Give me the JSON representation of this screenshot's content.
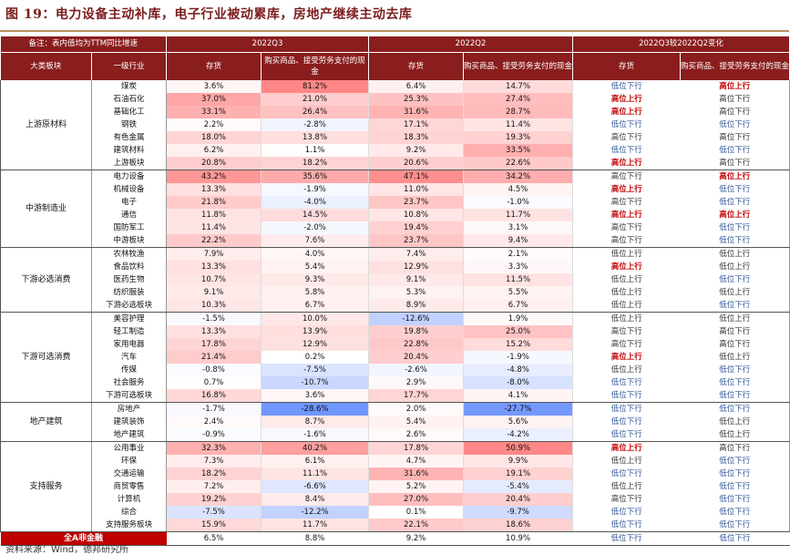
{
  "title": "图 19：电力设备主动补库，电子行业被动累库，房地产继续主动去库",
  "header": {
    "note": "备注：表内值均为TTM同比增速",
    "period1": "2022Q3",
    "period2": "2022Q2",
    "period3": "2022Q3较2022Q2变化",
    "col_group": "大类板块",
    "col_industry": "一级行业",
    "col_inventory": "存货",
    "col_cash": "购买商品、接受劳务支付的现金"
  },
  "groups": [
    {
      "name": "上游原材料",
      "rows": [
        {
          "ind": "煤炭",
          "inv3": "3.6%",
          "cash3": "81.2%",
          "inv2": "6.4%",
          "cash2": "14.7%",
          "chg_inv": "低位下行",
          "chg_cash": "高位上行"
        },
        {
          "ind": "石油石化",
          "inv3": "37.0%",
          "cash3": "21.0%",
          "inv2": "25.3%",
          "cash2": "27.4%",
          "chg_inv": "高位上行",
          "chg_cash": "高位下行"
        },
        {
          "ind": "基础化工",
          "inv3": "33.1%",
          "cash3": "26.4%",
          "inv2": "31.6%",
          "cash2": "28.7%",
          "chg_inv": "高位上行",
          "chg_cash": "高位下行"
        },
        {
          "ind": "钢铁",
          "inv3": "2.2%",
          "cash3": "-2.8%",
          "inv2": "17.1%",
          "cash2": "11.4%",
          "chg_inv": "低位下行",
          "chg_cash": "低位下行"
        },
        {
          "ind": "有色金属",
          "inv3": "18.0%",
          "cash3": "13.8%",
          "inv2": "18.3%",
          "cash2": "19.3%",
          "chg_inv": "高位下行",
          "chg_cash": "高位下行"
        },
        {
          "ind": "建筑材料",
          "inv3": "6.2%",
          "cash3": "1.1%",
          "inv2": "9.2%",
          "cash2": "33.5%",
          "chg_inv": "低位下行",
          "chg_cash": "低位下行"
        },
        {
          "ind": "上游板块",
          "inv3": "20.8%",
          "cash3": "18.2%",
          "inv2": "20.6%",
          "cash2": "22.6%",
          "chg_inv": "高位上行",
          "chg_cash": "高位下行",
          "sub": true
        }
      ]
    },
    {
      "name": "中游制造业",
      "rows": [
        {
          "ind": "电力设备",
          "inv3": "43.2%",
          "cash3": "35.6%",
          "inv2": "47.1%",
          "cash2": "34.2%",
          "chg_inv": "高位下行",
          "chg_cash": "高位上行"
        },
        {
          "ind": "机械设备",
          "inv3": "13.3%",
          "cash3": "-1.9%",
          "inv2": "11.0%",
          "cash2": "4.5%",
          "chg_inv": "高位上行",
          "chg_cash": "低位下行"
        },
        {
          "ind": "电子",
          "inv3": "21.8%",
          "cash3": "-4.0%",
          "inv2": "23.7%",
          "cash2": "-1.0%",
          "chg_inv": "高位下行",
          "chg_cash": "低位下行"
        },
        {
          "ind": "通信",
          "inv3": "11.8%",
          "cash3": "14.5%",
          "inv2": "10.8%",
          "cash2": "11.7%",
          "chg_inv": "高位上行",
          "chg_cash": "高位上行"
        },
        {
          "ind": "国防军工",
          "inv3": "11.4%",
          "cash3": "-2.0%",
          "inv2": "19.4%",
          "cash2": "3.1%",
          "chg_inv": "高位下行",
          "chg_cash": "低位下行"
        },
        {
          "ind": "中游板块",
          "inv3": "22.2%",
          "cash3": "7.6%",
          "inv2": "23.7%",
          "cash2": "9.4%",
          "chg_inv": "高位下行",
          "chg_cash": "低位下行",
          "sub": true
        }
      ]
    },
    {
      "name": "下游必选消费",
      "rows": [
        {
          "ind": "农林牧渔",
          "inv3": "7.9%",
          "cash3": "4.0%",
          "inv2": "7.4%",
          "cash2": "2.1%",
          "chg_inv": "低位上行",
          "chg_cash": "低位上行"
        },
        {
          "ind": "食品饮料",
          "inv3": "13.3%",
          "cash3": "5.4%",
          "inv2": "12.9%",
          "cash2": "3.3%",
          "chg_inv": "高位上行",
          "chg_cash": "低位上行"
        },
        {
          "ind": "医药生物",
          "inv3": "10.7%",
          "cash3": "9.3%",
          "inv2": "9.1%",
          "cash2": "11.5%",
          "chg_inv": "低位上行",
          "chg_cash": "低位下行"
        },
        {
          "ind": "纺织服装",
          "inv3": "9.1%",
          "cash3": "5.8%",
          "inv2": "5.3%",
          "cash2": "5.5%",
          "chg_inv": "低位上行",
          "chg_cash": "低位上行"
        },
        {
          "ind": "下游必选板块",
          "inv3": "10.3%",
          "cash3": "6.7%",
          "inv2": "8.9%",
          "cash2": "6.7%",
          "chg_inv": "低位上行",
          "chg_cash": "低位下行",
          "sub": true
        }
      ]
    },
    {
      "name": "下游可选消费",
      "rows": [
        {
          "ind": "美容护理",
          "inv3": "-1.5%",
          "cash3": "10.0%",
          "inv2": "-12.6%",
          "cash2": "1.9%",
          "chg_inv": "低位上行",
          "chg_cash": "低位上行"
        },
        {
          "ind": "轻工制造",
          "inv3": "13.3%",
          "cash3": "13.9%",
          "inv2": "19.8%",
          "cash2": "25.0%",
          "chg_inv": "高位下行",
          "chg_cash": "高位下行"
        },
        {
          "ind": "家用电器",
          "inv3": "17.8%",
          "cash3": "12.9%",
          "inv2": "22.8%",
          "cash2": "15.2%",
          "chg_inv": "高位下行",
          "chg_cash": "高位下行"
        },
        {
          "ind": "汽车",
          "inv3": "21.4%",
          "cash3": "0.2%",
          "inv2": "20.4%",
          "cash2": "-1.9%",
          "chg_inv": "高位上行",
          "chg_cash": "低位上行"
        },
        {
          "ind": "传媒",
          "inv3": "-0.8%",
          "cash3": "-7.5%",
          "inv2": "-2.6%",
          "cash2": "-4.8%",
          "chg_inv": "低位上行",
          "chg_cash": "低位下行"
        },
        {
          "ind": "社会服务",
          "inv3": "0.7%",
          "cash3": "-10.7%",
          "inv2": "2.9%",
          "cash2": "-8.0%",
          "chg_inv": "低位下行",
          "chg_cash": "低位下行"
        },
        {
          "ind": "下游可选板块",
          "inv3": "16.8%",
          "cash3": "3.6%",
          "inv2": "17.7%",
          "cash2": "4.1%",
          "chg_inv": "低位下行",
          "chg_cash": "低位下行",
          "sub": true
        }
      ]
    },
    {
      "name": "地产建筑",
      "rows": [
        {
          "ind": "房地产",
          "inv3": "-1.7%",
          "cash3": "-28.6%",
          "inv2": "2.0%",
          "cash2": "-27.7%",
          "chg_inv": "低位下行",
          "chg_cash": "低位下行"
        },
        {
          "ind": "建筑装饰",
          "inv3": "2.4%",
          "cash3": "8.7%",
          "inv2": "5.4%",
          "cash2": "5.6%",
          "chg_inv": "低位下行",
          "chg_cash": "低位上行"
        },
        {
          "ind": "地产建筑",
          "inv3": "-0.9%",
          "cash3": "-1.6%",
          "inv2": "2.6%",
          "cash2": "-4.2%",
          "chg_inv": "低位下行",
          "chg_cash": "低位上行",
          "sub": true
        }
      ]
    },
    {
      "name": "支持服务",
      "rows": [
        {
          "ind": "公用事业",
          "inv3": "32.3%",
          "cash3": "40.2%",
          "inv2": "17.8%",
          "cash2": "50.9%",
          "chg_inv": "高位上行",
          "chg_cash": "高位下行"
        },
        {
          "ind": "环保",
          "inv3": "7.3%",
          "cash3": "6.1%",
          "inv2": "4.7%",
          "cash2": "9.9%",
          "chg_inv": "低位上行",
          "chg_cash": "低位下行"
        },
        {
          "ind": "交通运输",
          "inv3": "18.2%",
          "cash3": "11.1%",
          "inv2": "31.6%",
          "cash2": "19.1%",
          "chg_inv": "低位下行",
          "chg_cash": "低位下行"
        },
        {
          "ind": "商贸零售",
          "inv3": "7.2%",
          "cash3": "-6.6%",
          "inv2": "5.2%",
          "cash2": "-5.4%",
          "chg_inv": "低位上行",
          "chg_cash": "低位下行"
        },
        {
          "ind": "计算机",
          "inv3": "19.2%",
          "cash3": "8.4%",
          "inv2": "27.0%",
          "cash2": "20.4%",
          "chg_inv": "高位下行",
          "chg_cash": "低位下行"
        },
        {
          "ind": "综合",
          "inv3": "-7.5%",
          "cash3": "-12.2%",
          "inv2": "0.1%",
          "cash2": "-9.7%",
          "chg_inv": "低位下行",
          "chg_cash": "低位下行"
        },
        {
          "ind": "支持服务板块",
          "inv3": "15.9%",
          "cash3": "11.7%",
          "inv2": "22.1%",
          "cash2": "18.6%",
          "chg_inv": "低位下行",
          "chg_cash": "低位下行",
          "sub": true
        }
      ]
    }
  ],
  "total": {
    "label": "全A非金融",
    "inv3": "6.5%",
    "cash3": "8.8%",
    "inv2": "9.2%",
    "cash2": "10.9%",
    "chg_inv": "低位下行",
    "chg_cash": "低位下行"
  },
  "source": "资料来源：Wind，德邦研究所",
  "colors": {
    "header_bg": "#8a1d1d",
    "up_text": "#c00000",
    "down_text": "#2f5597",
    "title": "#7b1e1e",
    "rule": "#b8905c"
  }
}
